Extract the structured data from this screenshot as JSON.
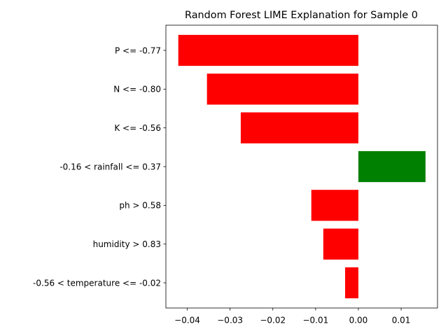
{
  "chart_data": {
    "type": "bar",
    "orientation": "horizontal",
    "title": "Random Forest LIME Explanation for Sample 0",
    "xlabel": "",
    "ylabel": "",
    "xlim": [
      -0.045,
      0.0185
    ],
    "x_ticks": [
      -0.04,
      -0.03,
      -0.02,
      -0.01,
      0.0,
      0.01
    ],
    "x_tick_labels": [
      "−0.04",
      "−0.03",
      "−0.02",
      "−0.01",
      "0.00",
      "0.01"
    ],
    "categories": [
      "P <= -0.77",
      "N <= -0.80",
      "K <= -0.56",
      "-0.16 < rainfall <= 0.37",
      "ph > 0.58",
      "humidity > 0.83",
      "-0.56 < temperature <= -0.02"
    ],
    "values": [
      -0.0421,
      -0.0354,
      -0.0275,
      0.0157,
      -0.011,
      -0.0082,
      -0.0031
    ],
    "colors": {
      "positive": "#008000",
      "negative": "#ff0000"
    },
    "grid": false,
    "legend": "none"
  }
}
